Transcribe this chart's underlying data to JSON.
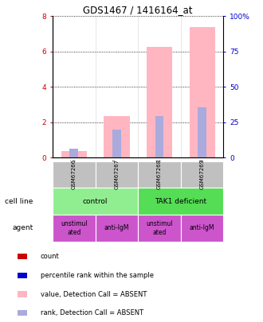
{
  "title": "GDS1467 / 1416164_at",
  "samples": [
    "GSM67266",
    "GSM67267",
    "GSM67268",
    "GSM67269"
  ],
  "bar_values": [
    0.4,
    2.35,
    6.25,
    7.4
  ],
  "rank_values": [
    0.5,
    1.6,
    2.35,
    2.85
  ],
  "ylim_left": [
    0,
    8
  ],
  "ylim_right": [
    0,
    100
  ],
  "yticks_left": [
    0,
    2,
    4,
    6,
    8
  ],
  "yticks_right": [
    0,
    25,
    50,
    75,
    100
  ],
  "ytick_labels_left": [
    "0",
    "2",
    "4",
    "6",
    "8"
  ],
  "ytick_labels_right": [
    "0",
    "25",
    "50",
    "75",
    "100%"
  ],
  "cell_line_labels": [
    "control",
    "TAK1 deficient"
  ],
  "cell_line_spans": [
    [
      0,
      2
    ],
    [
      2,
      4
    ]
  ],
  "agent_labels": [
    "unstimul\nated",
    "anti-IgM",
    "unstimul\nated",
    "anti-IgM"
  ],
  "cell_line_colors": [
    "#90EE90",
    "#55DD55"
  ],
  "agent_colors": [
    "#CC55CC",
    "#CC55CC",
    "#CC55CC",
    "#CC55CC"
  ],
  "gsm_bg_color": "#C0C0C0",
  "bar_color_absent": "#FFB6C1",
  "bar_color_rank_absent": "#AAAADD",
  "bar_color_count": "#CC0000",
  "bar_color_rank": "#0000CC",
  "legend_items": [
    {
      "label": "count",
      "color": "#CC0000"
    },
    {
      "label": "percentile rank within the sample",
      "color": "#0000CC"
    },
    {
      "label": "value, Detection Call = ABSENT",
      "color": "#FFB6C1"
    },
    {
      "label": "rank, Detection Call = ABSENT",
      "color": "#AAAADD"
    }
  ],
  "bar_width": 0.6,
  "rank_bar_width": 0.2,
  "left_tick_color": "#CC0000",
  "right_tick_color": "#0000CC"
}
